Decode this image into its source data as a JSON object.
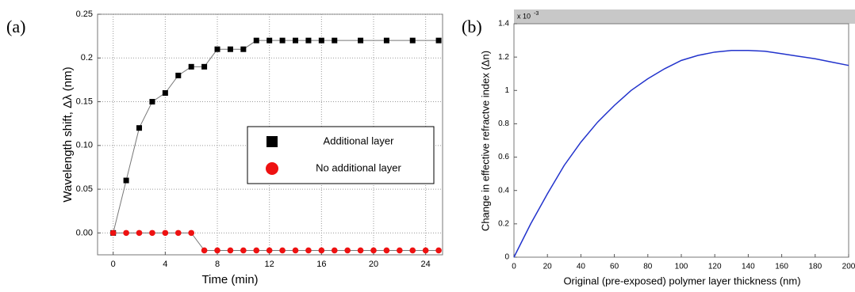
{
  "chart_data": [
    {
      "type": "line",
      "panel": "(a)",
      "x_label": "Time (min)",
      "y_label": "Wavelength shift, Δλ (nm)",
      "xlim": [
        -1.2,
        25.3
      ],
      "ylim": [
        -0.025,
        0.25
      ],
      "xticks": [
        0,
        4,
        8,
        12,
        16,
        20,
        24
      ],
      "yticks": [
        {
          "value": 0,
          "label": "0.00"
        },
        0.05,
        {
          "value": 0.1,
          "label": "0.10"
        },
        0.15,
        0.2,
        0.25
      ],
      "grid": true,
      "legend": "center right",
      "series": [
        {
          "name": "Additional layer",
          "color": "#000000",
          "marker": "square",
          "x": [
            0,
            1,
            2,
            3,
            4,
            5,
            6,
            7,
            8,
            9,
            10,
            11,
            12,
            13,
            14,
            15,
            16,
            17,
            19,
            21,
            23,
            25
          ],
          "values": [
            0,
            0.06,
            0.12,
            0.15,
            0.16,
            0.18,
            0.19,
            0.19,
            0.21,
            0.21,
            0.21,
            0.22,
            0.22,
            0.22,
            0.22,
            0.22,
            0.22,
            0.22,
            0.22,
            0.22,
            0.22,
            0.22
          ]
        },
        {
          "name": "No additional layer",
          "color": "#ee1111",
          "marker": "circle",
          "x": [
            0,
            1,
            2,
            3,
            4,
            5,
            6,
            7,
            8,
            9,
            10,
            11,
            12,
            13,
            14,
            15,
            16,
            17,
            18,
            19,
            20,
            21,
            22,
            23,
            24,
            25
          ],
          "values": [
            0,
            0,
            0,
            0,
            0,
            0,
            0,
            -0.02,
            -0.02,
            -0.02,
            -0.02,
            -0.02,
            -0.02,
            -0.02,
            -0.02,
            -0.02,
            -0.02,
            -0.02,
            -0.02,
            -0.02,
            -0.02,
            -0.02,
            -0.02,
            -0.02,
            -0.02,
            -0.02
          ]
        }
      ]
    },
    {
      "type": "line",
      "panel": "(b)",
      "x_label": "Original (pre-exposed) polymer layer thickness (nm)",
      "y_label": "Change in effective refractve index (Δn)",
      "multiplier_base": "x 10",
      "multiplier_exp": "-3",
      "xlim": [
        0,
        200
      ],
      "ylim": [
        0,
        1.4
      ],
      "xticks": [
        0,
        20,
        40,
        60,
        80,
        100,
        120,
        140,
        160,
        180,
        200
      ],
      "yticks": [
        0,
        0.2,
        0.4,
        0.6,
        0.8,
        1,
        1.2,
        1.4
      ],
      "grid": false,
      "series": [
        {
          "color": "#2233cc",
          "marker": "none",
          "x": [
            0,
            10,
            20,
            30,
            40,
            50,
            60,
            70,
            80,
            90,
            100,
            110,
            120,
            130,
            140,
            150,
            160,
            170,
            180,
            190,
            200
          ],
          "values": [
            0,
            0.2,
            0.38,
            0.55,
            0.69,
            0.81,
            0.91,
            1.0,
            1.07,
            1.13,
            1.18,
            1.21,
            1.23,
            1.24,
            1.24,
            1.235,
            1.22,
            1.205,
            1.19,
            1.17,
            1.15
          ]
        }
      ]
    }
  ]
}
